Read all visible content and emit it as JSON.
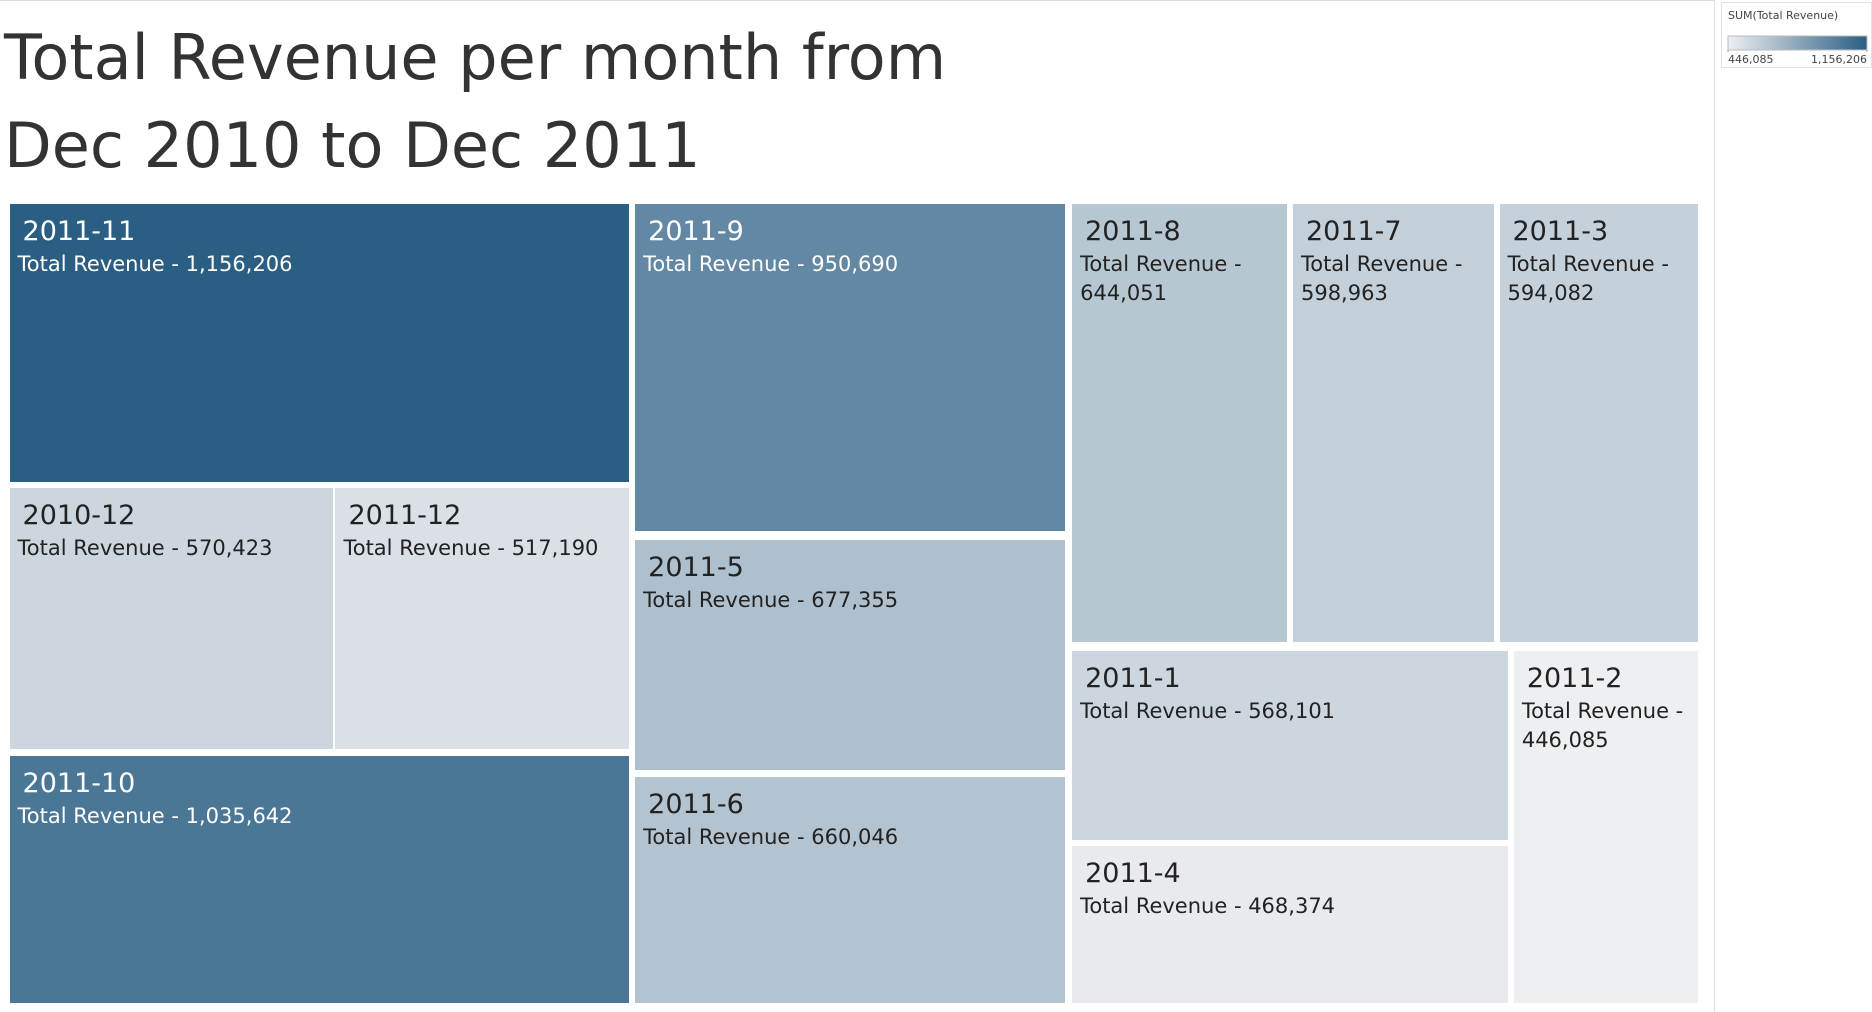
{
  "chart_data": {
    "type": "treemap",
    "title": "Total Revenue per month from Dec 2010 to Dec 2011",
    "categories": [
      "2010-12",
      "2011-1",
      "2011-2",
      "2011-3",
      "2011-4",
      "2011-5",
      "2011-6",
      "2011-7",
      "2011-8",
      "2011-9",
      "2011-10",
      "2011-11",
      "2011-12"
    ],
    "values": [
      570423,
      568101,
      446085,
      594082,
      468374,
      677355,
      660046,
      598963,
      644051,
      950690,
      1035642,
      1156206,
      517190
    ],
    "value_labels": [
      "Total Revenue - 570,423",
      "Total Revenue - 568,101",
      "Total Revenue - 446,085",
      "Total Revenue - 594,082",
      "Total Revenue - 468,374",
      "Total Revenue - 677,355",
      "Total Revenue - 660,046",
      "Total Revenue - 598,963",
      "Total Revenue - 644,051",
      "Total Revenue - 950,690",
      "Total Revenue - 1,035,642",
      "Total Revenue - 1,156,206",
      "Total Revenue - 517,190"
    ],
    "color_scale": {
      "title": "SUM(Total Revenue)",
      "range": [
        446085,
        1156206
      ],
      "colors": [
        "#eeeff1",
        "#2a5e83"
      ],
      "ticks": [
        {
          "value": 446085,
          "label": "446,085"
        },
        {
          "value": 1156206,
          "label": "1,156,206"
        }
      ]
    }
  }
}
